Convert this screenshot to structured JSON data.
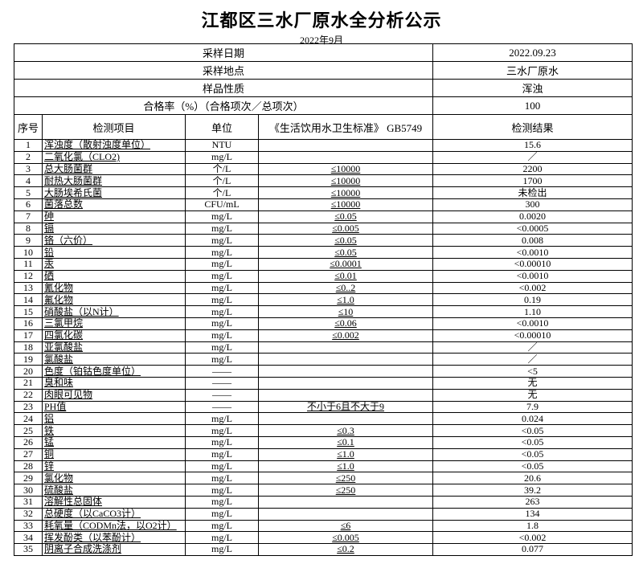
{
  "title": "江都区三水厂原水全分析公示",
  "subtitle": "2022年9月",
  "info": [
    {
      "label": "采样日期",
      "value": "2022.09.23"
    },
    {
      "label": "采样地点",
      "value": "三水厂原水"
    },
    {
      "label": "样品性质",
      "value": "浑浊"
    },
    {
      "label": "合格率（%）（合格项次／总项次）",
      "value": "100"
    }
  ],
  "columns": [
    "序号",
    "检测项目",
    "单位",
    "《生活饮用水卫生标准》 GB5749",
    "检测结果"
  ],
  "rows": [
    [
      "1",
      "浑浊度（散射浊度单位）",
      "NTU",
      "",
      "15.6"
    ],
    [
      "2",
      "二氧化氯（CLO2)",
      "mg/L",
      "",
      "／"
    ],
    [
      "3",
      "总大肠菌群",
      "个/L",
      "≤10000",
      "2200"
    ],
    [
      "4",
      "耐热大肠菌群",
      "个/L",
      "≤10000",
      "1700"
    ],
    [
      "5",
      "大肠埃希氏菌",
      "个/L",
      "≤10000",
      "未检出"
    ],
    [
      "6",
      "菌落总数",
      "CFU/mL",
      "≤10000",
      "300"
    ],
    [
      "7",
      "砷",
      "mg/L",
      "≤0.05",
      "0.0020"
    ],
    [
      "8",
      "镉",
      "mg/L",
      "≤0.005",
      "<0.0005"
    ],
    [
      "9",
      "铬（六价）",
      "mg/L",
      "≤0.05",
      "0.008"
    ],
    [
      "10",
      "铅",
      "mg/L",
      "≤0.05",
      "<0.0010"
    ],
    [
      "11",
      "汞",
      "mg/L",
      "≤0.0001",
      "<0.00010"
    ],
    [
      "12",
      "硒",
      "mg/L",
      "≤0.01",
      "<0.0010"
    ],
    [
      "13",
      "氰化物",
      "mg/L",
      "≤0..2",
      "<0.002"
    ],
    [
      "14",
      "氟化物",
      "mg/L",
      "≤1.0",
      "0.19"
    ],
    [
      "15",
      "硝酸盐（以N计）",
      "mg/L",
      "≤10",
      "1.10"
    ],
    [
      "16",
      "三氯甲烷",
      "mg/L",
      "≤0.06",
      "<0.0010"
    ],
    [
      "17",
      "四氯化碳",
      "mg/L",
      "≤0.002",
      "<0.00010"
    ],
    [
      "18",
      "亚氯酸盐",
      "mg/L",
      "",
      "／"
    ],
    [
      "19",
      "氯酸盐",
      "mg/L",
      "",
      "／"
    ],
    [
      "20",
      "色度（铂钴色度单位）",
      "——",
      "",
      "<5"
    ],
    [
      "21",
      "臭和味",
      "——",
      "",
      "无"
    ],
    [
      "22",
      "肉眼可见物",
      "——",
      "",
      "无"
    ],
    [
      "23",
      "PH值",
      "——",
      "不小于6且不大于9",
      "7.9"
    ],
    [
      "24",
      "铝",
      "mg/L",
      "",
      "0.024"
    ],
    [
      "25",
      "铁",
      "mg/L",
      "≤0.3",
      "<0.05"
    ],
    [
      "26",
      "锰",
      "mg/L",
      "≤0.1",
      "<0.05"
    ],
    [
      "27",
      "铜",
      "mg/L",
      "≤1.0",
      "<0.05"
    ],
    [
      "28",
      "锌",
      "mg/L",
      "≤1.0",
      "<0.05"
    ],
    [
      "29",
      "氯化物",
      "mg/L",
      "≤250",
      "20.6"
    ],
    [
      "30",
      "硫酸盐",
      "mg/L",
      "≤250",
      "39.2"
    ],
    [
      "31",
      "溶解性总固体",
      "mg/L",
      "",
      "263"
    ],
    [
      "32",
      "总硬度（以CaCO3计）",
      "mg/L",
      "",
      "134"
    ],
    [
      "33",
      "耗氧量（CODMn法，以O2计）",
      "mg/L",
      "≤6",
      "1.8"
    ],
    [
      "34",
      "挥发酚类（以苯酚计）",
      "mg/L",
      "≤0.005",
      "<0.002"
    ],
    [
      "35",
      "阴离子合成洗涤剂",
      "mg/L",
      "≤0.2",
      "0.077"
    ]
  ]
}
